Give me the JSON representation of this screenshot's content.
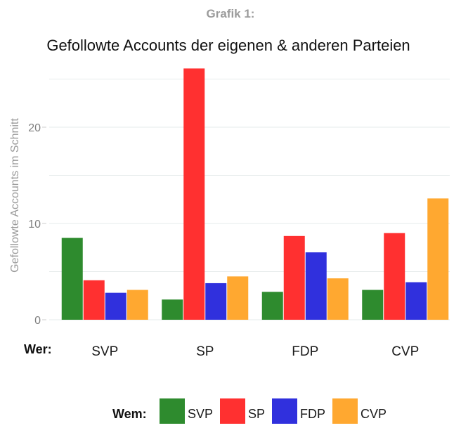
{
  "caption": "Grafik 1:",
  "chart_data": {
    "type": "bar",
    "title": "Gefollowte Accounts der eigenen & anderen Parteien",
    "xlabel": "Wer:",
    "ylabel": "Gefollowte Accounts im Schnitt",
    "categories": [
      "SVP",
      "SP",
      "FDP",
      "CVP"
    ],
    "series": [
      {
        "name": "SVP",
        "color": "#2e8b2e",
        "values": [
          8.5,
          2.1,
          2.9,
          3.1
        ]
      },
      {
        "name": "SP",
        "color": "#ff3030",
        "values": [
          4.1,
          26.1,
          8.7,
          9.0
        ]
      },
      {
        "name": "FDP",
        "color": "#3030dd",
        "values": [
          2.8,
          3.8,
          7.0,
          3.9
        ]
      },
      {
        "name": "CVP",
        "color": "#ffa830",
        "values": [
          3.1,
          4.5,
          4.3,
          12.6
        ]
      }
    ],
    "ylim": [
      0,
      27
    ],
    "yticks": [
      0,
      10,
      20
    ],
    "grid": true,
    "legend": {
      "title": "Wem:",
      "position": "bottom"
    }
  }
}
